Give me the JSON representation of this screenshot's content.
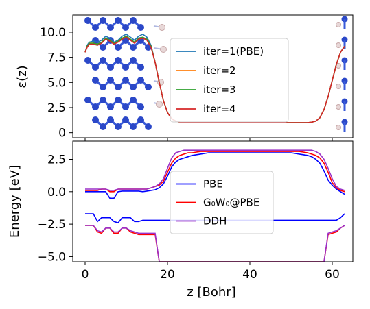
{
  "chart_data": [
    {
      "type": "line",
      "panel": "top",
      "ylabel": "ε(z)",
      "xlim": [
        -3,
        65
      ],
      "ylim": [
        -0.5,
        11.7
      ],
      "xticks": [
        0,
        20,
        40,
        60
      ],
      "yticks": [
        "0",
        "2.5",
        "5.0",
        "7.5",
        "10.0"
      ],
      "ytick_values": [
        0,
        2.5,
        5.0,
        7.5,
        10.0
      ],
      "grid": false,
      "legend_position": "center-right",
      "background_overlay": "graphene-like atomic slab structure (blue atoms, white H atoms)",
      "x": [
        0,
        0.5,
        1,
        2,
        3,
        4,
        5,
        6,
        7,
        8,
        9,
        10,
        11,
        12,
        13,
        14,
        15,
        16,
        17,
        18,
        19,
        20,
        21,
        22,
        23,
        24,
        25,
        30,
        35,
        40,
        45,
        50,
        54,
        55,
        56,
        57,
        58,
        59,
        60,
        61,
        62,
        63
      ],
      "series": [
        {
          "name": "iter=1(PBE)",
          "color": "#1f77b4",
          "values": [
            8.0,
            8.7,
            9.0,
            9.1,
            9.0,
            9.2,
            9.6,
            9.4,
            9.0,
            9.2,
            9.6,
            9.8,
            9.5,
            9.2,
            9.6,
            9.8,
            9.5,
            8.7,
            7.0,
            5.0,
            3.2,
            2.0,
            1.4,
            1.15,
            1.05,
            1.0,
            1.0,
            1.0,
            1.0,
            1.0,
            1.0,
            1.0,
            1.0,
            1.05,
            1.15,
            1.5,
            2.3,
            3.6,
            5.2,
            6.8,
            8.0,
            8.6
          ]
        },
        {
          "name": "iter=2",
          "color": "#ff7f0e",
          "values": [
            8.0,
            8.6,
            8.9,
            8.9,
            8.8,
            9.0,
            9.4,
            9.2,
            8.9,
            9.1,
            9.4,
            9.6,
            9.3,
            9.0,
            9.4,
            9.5,
            9.3,
            8.6,
            7.0,
            5.0,
            3.2,
            2.0,
            1.4,
            1.15,
            1.05,
            1.0,
            1.0,
            1.0,
            1.0,
            1.0,
            1.0,
            1.0,
            1.0,
            1.05,
            1.15,
            1.5,
            2.3,
            3.6,
            5.2,
            6.8,
            8.0,
            8.6
          ]
        },
        {
          "name": "iter=3",
          "color": "#2ca02c",
          "values": [
            8.0,
            8.6,
            8.9,
            8.9,
            8.8,
            9.0,
            9.4,
            9.2,
            8.9,
            9.1,
            9.4,
            9.6,
            9.3,
            9.0,
            9.4,
            9.5,
            9.3,
            8.6,
            7.0,
            5.0,
            3.2,
            2.0,
            1.4,
            1.15,
            1.05,
            1.0,
            1.0,
            1.0,
            1.0,
            1.0,
            1.0,
            1.0,
            1.0,
            1.05,
            1.15,
            1.5,
            2.3,
            3.6,
            5.2,
            6.8,
            8.0,
            8.6
          ]
        },
        {
          "name": "iter=4",
          "color": "#d62728",
          "values": [
            8.0,
            8.5,
            8.8,
            8.8,
            8.7,
            8.9,
            9.3,
            9.1,
            8.8,
            9.0,
            9.3,
            9.5,
            9.2,
            8.9,
            9.3,
            9.4,
            9.2,
            8.5,
            7.0,
            5.0,
            3.2,
            2.0,
            1.4,
            1.15,
            1.05,
            1.0,
            1.0,
            1.0,
            1.0,
            1.0,
            1.0,
            1.0,
            1.0,
            1.05,
            1.15,
            1.5,
            2.3,
            3.6,
            5.2,
            6.8,
            8.0,
            8.6
          ]
        }
      ]
    },
    {
      "type": "line",
      "panel": "bottom",
      "xlabel": "z [Bohr]",
      "ylabel": "Energy [eV]",
      "xlim": [
        -3,
        65
      ],
      "ylim": [
        -5.4,
        3.9
      ],
      "xticks": [
        0,
        20,
        40,
        60
      ],
      "yticks": [
        "−5.0",
        "−2.5",
        "0.0",
        "2.5"
      ],
      "ytick_values": [
        -5.0,
        -2.5,
        0.0,
        2.5
      ],
      "grid": false,
      "legend_position": "center-left",
      "series": [
        {
          "name": "PBE",
          "color": "#0000ff",
          "role": "conduction",
          "x": [
            0,
            1,
            2,
            3,
            4,
            5,
            6,
            7,
            8,
            9,
            10,
            11,
            12,
            13,
            14,
            15,
            16,
            17,
            18,
            19,
            20,
            21,
            22,
            23,
            24,
            25,
            26,
            28,
            30,
            35,
            40,
            45,
            50,
            52,
            54,
            55,
            56,
            57,
            58,
            59,
            60,
            61,
            62,
            63
          ],
          "values": [
            0.0,
            0.0,
            0.0,
            0.0,
            0.0,
            0.0,
            -0.5,
            -0.5,
            0.0,
            0.05,
            0.05,
            0.05,
            0.05,
            0.05,
            0.0,
            0.05,
            0.1,
            0.15,
            0.3,
            0.6,
            1.2,
            1.9,
            2.3,
            2.5,
            2.6,
            2.7,
            2.8,
            2.9,
            3.0,
            3.0,
            3.0,
            3.0,
            3.0,
            2.9,
            2.8,
            2.7,
            2.5,
            2.2,
            1.6,
            0.9,
            0.5,
            0.2,
            0.0,
            -0.2
          ]
        },
        {
          "name": "PBE",
          "color": "#0000ff",
          "role": "valence",
          "x": [
            0,
            1,
            2,
            3,
            4,
            5,
            6,
            7,
            8,
            9,
            10,
            11,
            12,
            13,
            14,
            15,
            16,
            17,
            18,
            59,
            60,
            61,
            62,
            63
          ],
          "values": [
            -1.7,
            -1.7,
            -1.7,
            -2.3,
            -2.0,
            -2.0,
            -2.0,
            -2.3,
            -2.4,
            -2.0,
            -2.0,
            -2.0,
            -2.3,
            -2.3,
            -2.2,
            -2.2,
            -2.2,
            -2.2,
            -2.2,
            -2.2,
            -2.2,
            -2.2,
            -2.0,
            -1.7
          ]
        },
        {
          "name": "G₀W₀@PBE",
          "color": "#ff0000",
          "role": "conduction",
          "x": [
            0,
            1,
            2,
            3,
            4,
            5,
            6,
            7,
            8,
            9,
            10,
            11,
            12,
            13,
            14,
            15,
            16,
            17,
            18,
            19,
            20,
            21,
            22,
            23,
            24,
            25,
            26,
            28,
            30,
            35,
            40,
            45,
            50,
            52,
            54,
            55,
            56,
            57,
            58,
            59,
            60,
            61,
            62,
            63
          ],
          "values": [
            0.1,
            0.1,
            0.1,
            0.1,
            0.2,
            0.2,
            0.0,
            0.0,
            0.2,
            0.2,
            0.2,
            0.2,
            0.2,
            0.2,
            0.2,
            0.2,
            0.3,
            0.4,
            0.5,
            0.8,
            1.5,
            2.2,
            2.6,
            2.8,
            2.9,
            3.0,
            3.0,
            3.1,
            3.1,
            3.1,
            3.1,
            3.1,
            3.1,
            3.1,
            3.0,
            2.9,
            2.8,
            2.6,
            2.2,
            1.5,
            0.7,
            0.3,
            0.1,
            0.0
          ]
        },
        {
          "name": "G₀W₀@PBE",
          "color": "#ff0000",
          "role": "valence",
          "x": [
            0,
            1,
            2,
            3,
            4,
            5,
            6,
            7,
            8,
            9,
            10,
            11,
            12,
            13,
            14,
            15,
            16,
            17,
            18,
            58,
            59,
            60,
            61,
            62,
            63
          ],
          "values": [
            -2.6,
            -2.6,
            -2.6,
            -3.1,
            -3.2,
            -2.8,
            -2.8,
            -3.2,
            -3.2,
            -2.8,
            -2.8,
            -3.1,
            -3.2,
            -3.3,
            -3.3,
            -3.3,
            -3.3,
            -3.3,
            -5.4,
            -5.4,
            -3.3,
            -3.2,
            -3.1,
            -2.8,
            -2.6
          ]
        },
        {
          "name": "DDH",
          "color": "#9b30c8",
          "role": "conduction",
          "x": [
            0,
            1,
            2,
            3,
            4,
            5,
            6,
            7,
            8,
            9,
            10,
            11,
            12,
            13,
            14,
            15,
            16,
            17,
            18,
            19,
            20,
            21,
            22,
            23,
            24,
            25,
            26,
            28,
            30,
            35,
            40,
            45,
            50,
            52,
            54,
            55,
            56,
            57,
            58,
            59,
            60,
            61,
            62,
            63
          ],
          "values": [
            0.2,
            0.2,
            0.2,
            0.2,
            0.2,
            0.2,
            0.1,
            0.1,
            0.2,
            0.2,
            0.2,
            0.2,
            0.2,
            0.2,
            0.2,
            0.2,
            0.3,
            0.4,
            0.6,
            1.0,
            1.8,
            2.6,
            3.0,
            3.1,
            3.2,
            3.2,
            3.2,
            3.2,
            3.2,
            3.2,
            3.2,
            3.2,
            3.2,
            3.2,
            3.2,
            3.2,
            3.1,
            2.9,
            2.5,
            1.8,
            1.0,
            0.4,
            0.2,
            0.1
          ]
        },
        {
          "name": "DDH",
          "color": "#9b30c8",
          "role": "valence",
          "x": [
            0,
            1,
            2,
            3,
            4,
            5,
            6,
            7,
            8,
            9,
            10,
            11,
            12,
            13,
            14,
            15,
            16,
            17,
            18,
            58,
            59,
            60,
            61,
            62,
            63
          ],
          "values": [
            -2.6,
            -2.6,
            -2.6,
            -3.0,
            -3.1,
            -2.8,
            -2.8,
            -3.1,
            -3.1,
            -2.8,
            -2.8,
            -3.0,
            -3.1,
            -3.2,
            -3.2,
            -3.2,
            -3.2,
            -3.2,
            -5.4,
            -5.4,
            -3.2,
            -3.1,
            -3.0,
            -2.8,
            -2.6
          ]
        }
      ]
    }
  ]
}
